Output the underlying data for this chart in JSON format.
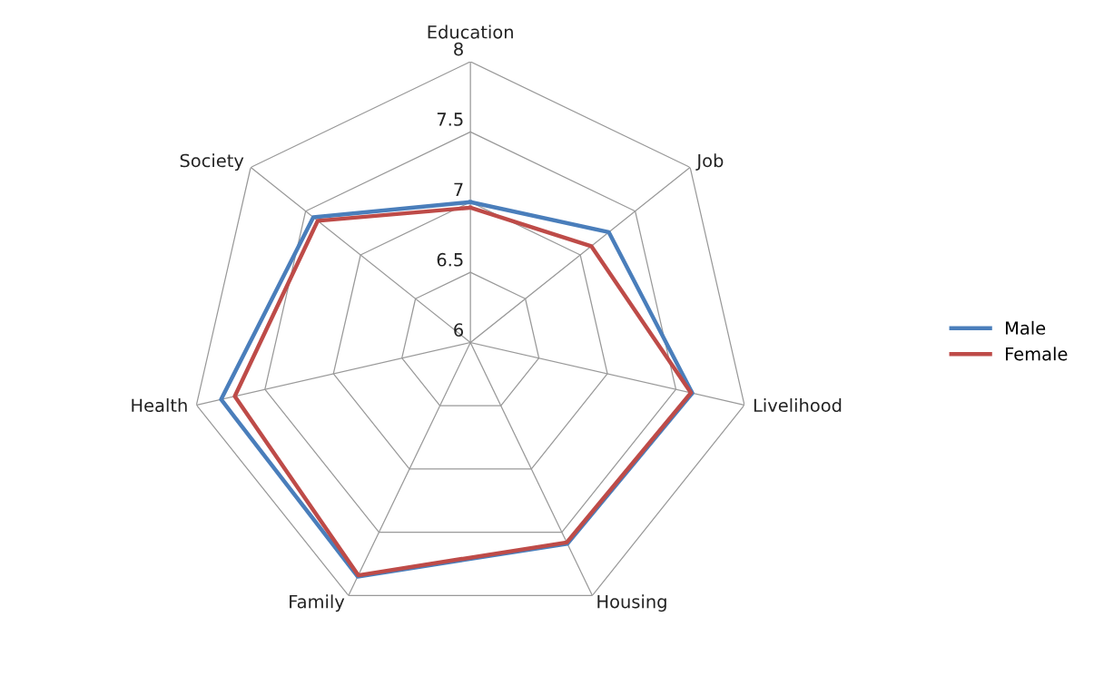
{
  "chart_data": {
    "type": "radar",
    "categories": [
      "Education",
      "Job",
      "Livelihood",
      "Housing",
      "Family",
      "Health",
      "Society"
    ],
    "series": [
      {
        "name": "Male",
        "color": "#4a7ebb",
        "values": [
          7.0,
          7.26,
          7.62,
          7.59,
          7.85,
          7.82,
          7.43
        ]
      },
      {
        "name": "Female",
        "color": "#be4b48",
        "values": [
          6.96,
          7.1,
          7.61,
          7.58,
          7.84,
          7.72,
          7.39
        ]
      }
    ],
    "ylim": [
      6,
      8
    ],
    "yticks": [
      6,
      6.5,
      7,
      7.5,
      8
    ],
    "grid": true,
    "legend": "right",
    "marker": "none",
    "line_style": "solid"
  }
}
